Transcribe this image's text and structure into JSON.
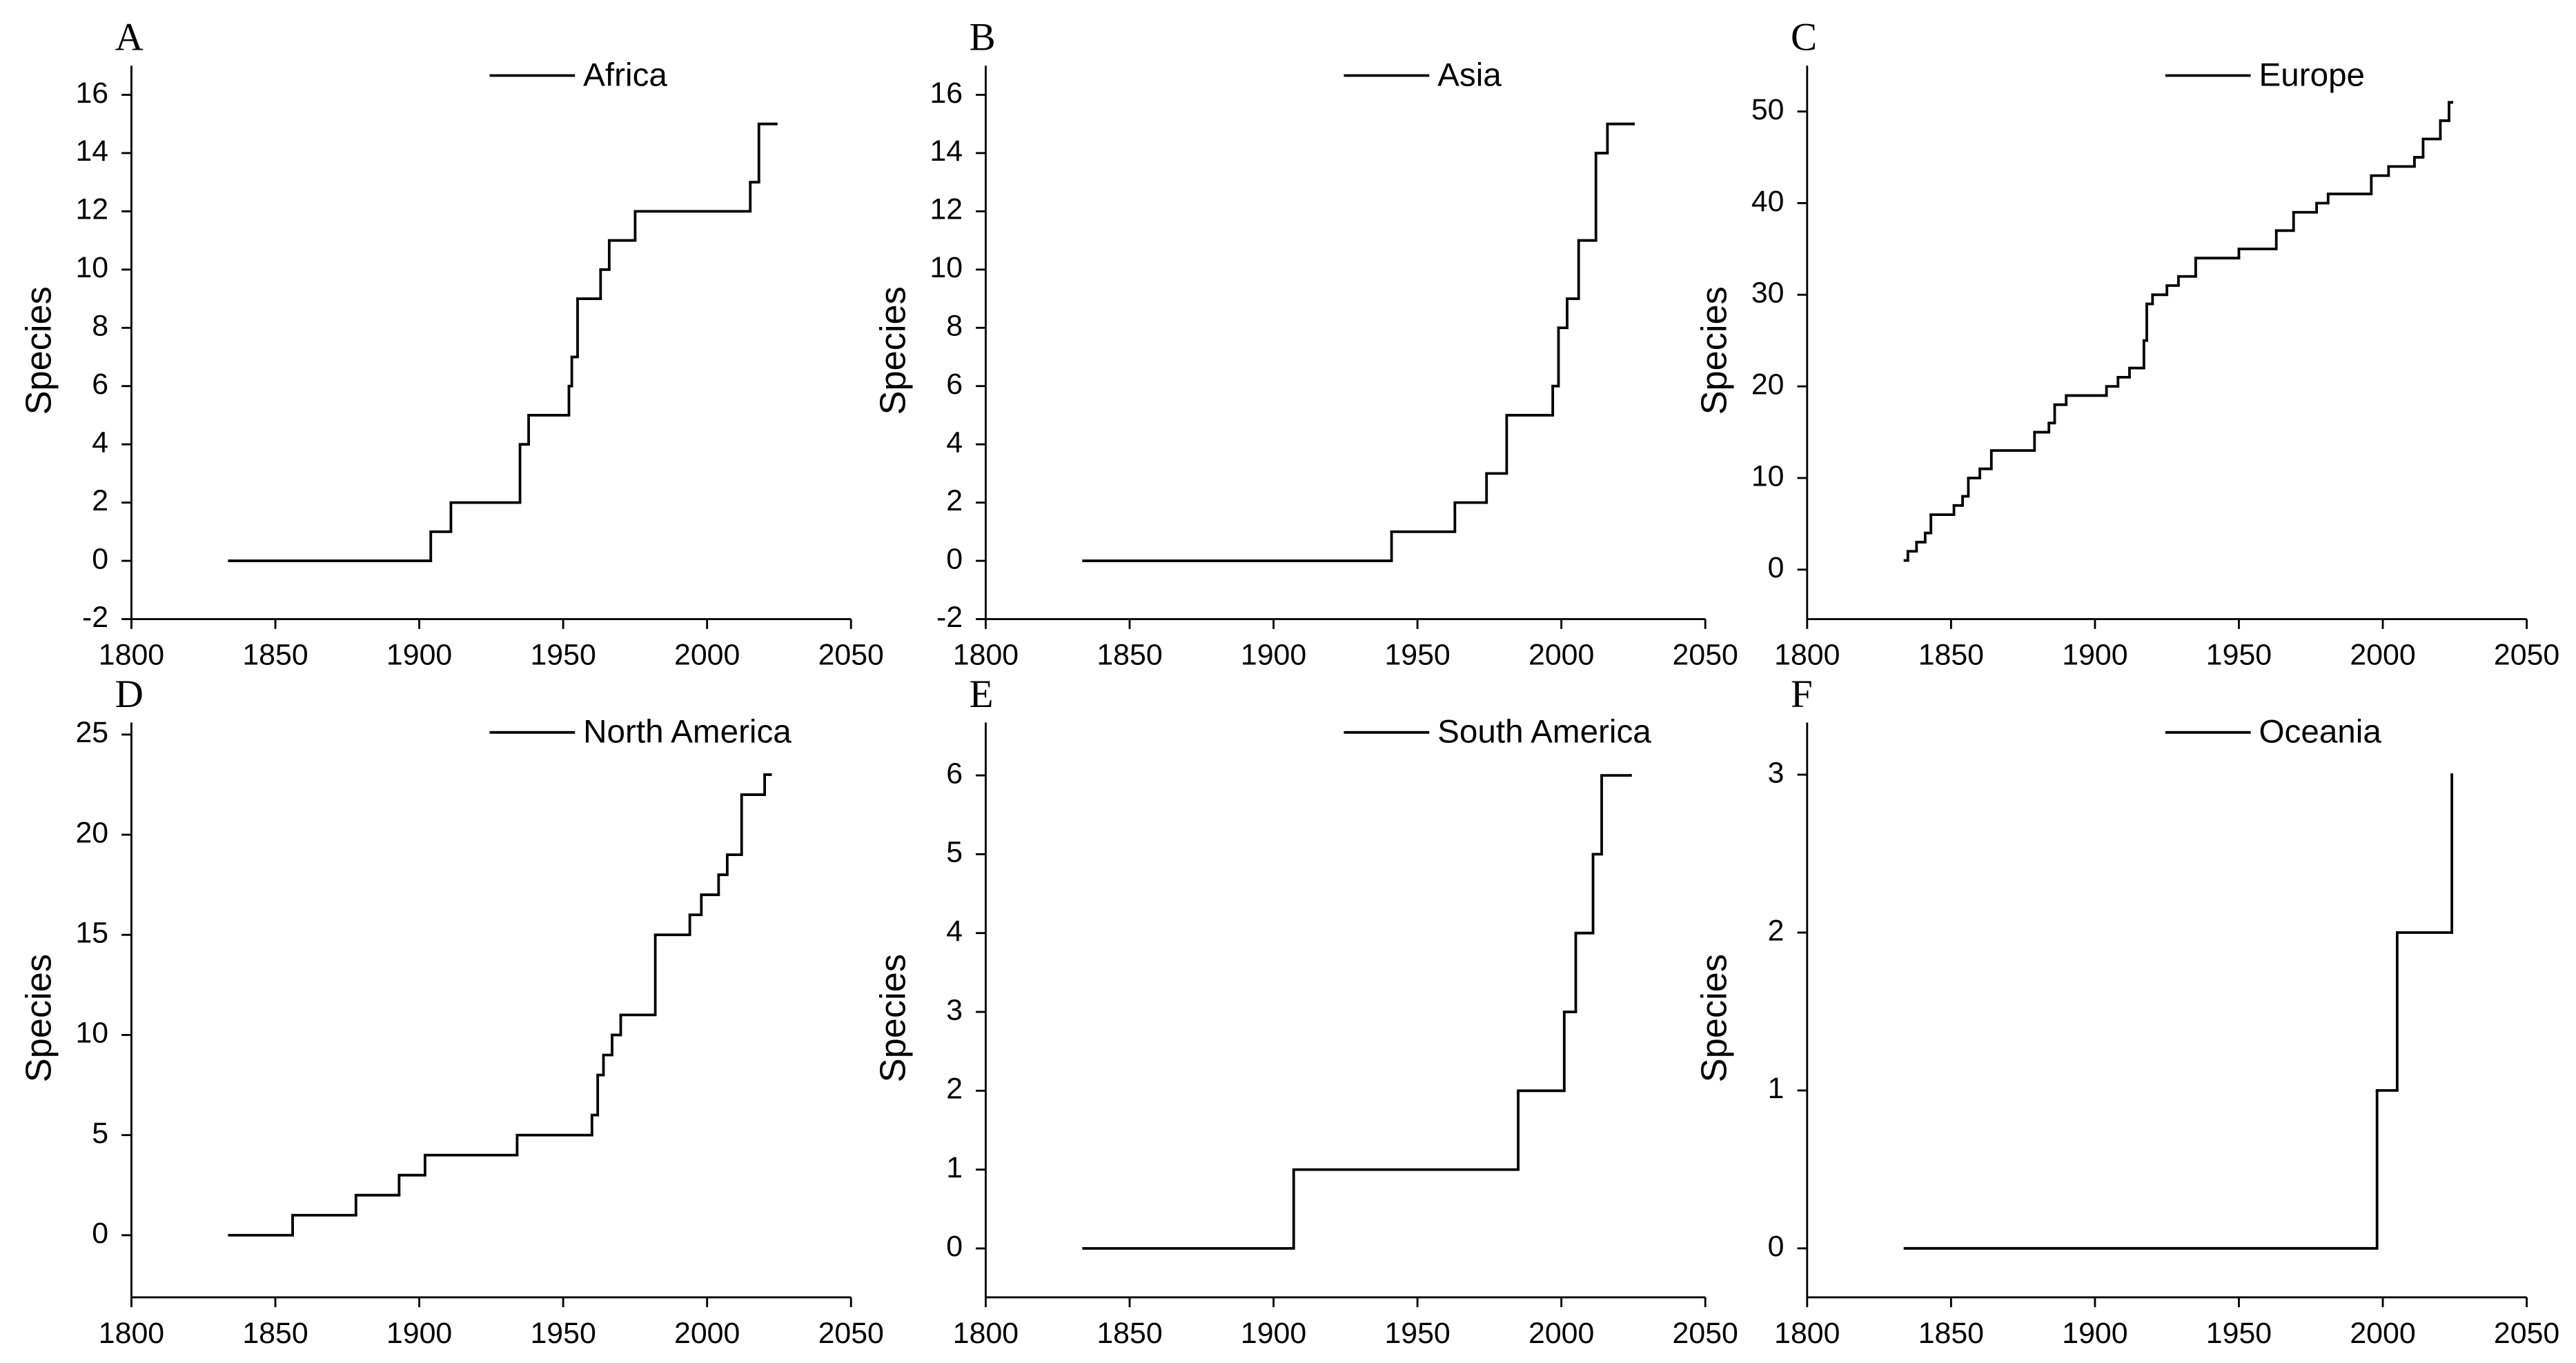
{
  "chart_data": [
    {
      "type": "line",
      "step": "post",
      "panel": "A",
      "ylabel": "Species",
      "xlim": [
        1800,
        2050
      ],
      "xticks": [
        1800,
        1850,
        1900,
        1950,
        2000,
        2050
      ],
      "ylim": [
        -2,
        17
      ],
      "yticks": [
        -2,
        0,
        2,
        4,
        6,
        8,
        10,
        12,
        14,
        16
      ],
      "x": [
        1834,
        1904,
        1911,
        1935,
        1938,
        1952,
        1953,
        1955,
        1963,
        1966,
        1975,
        2015,
        2018,
        2024
      ],
      "series": [
        {
          "name": "Africa",
          "color": "#000000",
          "values": [
            0,
            1,
            2,
            4,
            5,
            6,
            7,
            9,
            10,
            11,
            12,
            13,
            15,
            15
          ]
        }
      ]
    },
    {
      "type": "line",
      "step": "post",
      "panel": "B",
      "ylabel": "Species",
      "xlim": [
        1800,
        2050
      ],
      "xticks": [
        1800,
        1850,
        1900,
        1950,
        2000,
        2050
      ],
      "ylim": [
        -2,
        17
      ],
      "yticks": [
        -2,
        0,
        2,
        4,
        6,
        8,
        10,
        12,
        14,
        16
      ],
      "x": [
        1834,
        1941,
        1963,
        1974,
        1981,
        1997,
        1999,
        2002,
        2006,
        2012,
        2016,
        2025
      ],
      "series": [
        {
          "name": "Asia",
          "color": "#000000",
          "values": [
            0,
            1,
            2,
            3,
            5,
            6,
            8,
            9,
            11,
            14,
            15,
            15
          ]
        }
      ]
    },
    {
      "type": "line",
      "step": "post",
      "panel": "C",
      "ylabel": "Species",
      "xlim": [
        1800,
        2050
      ],
      "xticks": [
        1800,
        1850,
        1900,
        1950,
        2000,
        2050
      ],
      "ylim": [
        -5.4,
        55
      ],
      "yticks": [
        0,
        10,
        20,
        30,
        40,
        50
      ],
      "x": [
        1834,
        1835,
        1838,
        1841,
        1843,
        1851,
        1854,
        1856,
        1860,
        1864,
        1879,
        1884,
        1886,
        1890,
        1904,
        1908,
        1912,
        1917,
        1918,
        1920,
        1925,
        1929,
        1935,
        1950,
        1963,
        1969,
        1977,
        1981,
        1996,
        2002,
        2011,
        2014,
        2020,
        2023,
        2024
      ],
      "series": [
        {
          "name": "Europe",
          "color": "#000000",
          "values": [
            1,
            2,
            3,
            4,
            6,
            7,
            8,
            10,
            11,
            13,
            15,
            16,
            18,
            19,
            20,
            21,
            22,
            25,
            29,
            30,
            31,
            32,
            34,
            35,
            37,
            39,
            40,
            41,
            43,
            44,
            45,
            47,
            49,
            51,
            51
          ]
        }
      ]
    },
    {
      "type": "line",
      "step": "post",
      "panel": "D",
      "ylabel": "Species",
      "xlim": [
        1800,
        2050
      ],
      "xticks": [
        1800,
        1850,
        1900,
        1950,
        2000,
        2050
      ],
      "ylim": [
        -3.1,
        25.6
      ],
      "yticks": [
        0,
        5,
        10,
        15,
        20,
        25
      ],
      "x": [
        1834,
        1856,
        1878,
        1893,
        1902,
        1934,
        1960,
        1962,
        1964,
        1967,
        1970,
        1982,
        1994,
        1998,
        2004,
        2007,
        2012,
        2020,
        2022
      ],
      "series": [
        {
          "name": "North America",
          "color": "#000000",
          "values": [
            0,
            1,
            2,
            3,
            4,
            5,
            6,
            8,
            9,
            10,
            11,
            15,
            16,
            17,
            18,
            19,
            22,
            23,
            23
          ]
        }
      ]
    },
    {
      "type": "line",
      "step": "post",
      "panel": "E",
      "ylabel": "Species",
      "xlim": [
        1800,
        2050
      ],
      "xticks": [
        1800,
        1850,
        1900,
        1950,
        2000,
        2050
      ],
      "ylim": [
        -0.62,
        6.67
      ],
      "yticks": [
        0,
        1,
        2,
        3,
        4,
        5,
        6
      ],
      "x": [
        1834,
        1907,
        1985,
        2001,
        2005,
        2011,
        2014,
        2024
      ],
      "series": [
        {
          "name": "South America",
          "color": "#000000",
          "values": [
            0,
            1,
            2,
            3,
            4,
            5,
            6,
            6
          ]
        }
      ]
    },
    {
      "type": "line",
      "step": "post",
      "panel": "F",
      "ylabel": "Species",
      "xlim": [
        1800,
        2050
      ],
      "xticks": [
        1800,
        1850,
        1900,
        1950,
        2000,
        2050
      ],
      "ylim": [
        -0.31,
        3.33
      ],
      "yticks": [
        0,
        1,
        2,
        3
      ],
      "x": [
        1834,
        1998,
        2005,
        2024
      ],
      "series": [
        {
          "name": "Oceania",
          "color": "#000000",
          "values": [
            0,
            1,
            2,
            3
          ]
        }
      ]
    }
  ]
}
